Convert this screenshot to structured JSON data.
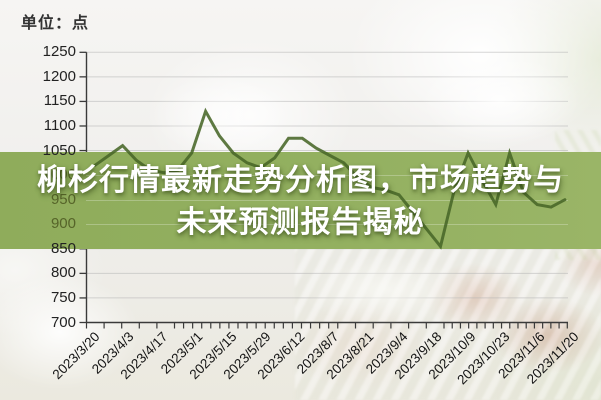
{
  "header": {
    "unit_label": "单位：点"
  },
  "overlay": {
    "line1": "柳杉行情最新走势分析图，市场趋势与",
    "line2": "未来预测报告揭秘"
  },
  "chart_data": {
    "type": "line",
    "unit": "点",
    "ylim": [
      700,
      1250
    ],
    "y_ticks": [
      1250,
      1200,
      1150,
      1100,
      1050,
      1000,
      950,
      900,
      850,
      800,
      750,
      700
    ],
    "x_labels": [
      "2023/3/20",
      "2023/4/3",
      "2023/4/17",
      "2023/5/1",
      "2023/5/15",
      "2023/5/29",
      "2023/6/12",
      "2023/8/7",
      "2023/8/21",
      "2023/9/4",
      "2023/9/18",
      "2023/10/9",
      "2023/10/23",
      "2023/11/6",
      "2023/11/20"
    ],
    "values": [
      1020,
      1040,
      1060,
      1030,
      1010,
      1005,
      1010,
      1045,
      1130,
      1080,
      1045,
      1025,
      1015,
      1035,
      1075,
      1075,
      1055,
      1040,
      1025,
      995,
      975,
      970,
      960,
      925,
      890,
      855,
      970,
      1045,
      990,
      940,
      1045,
      965,
      940,
      935,
      950
    ],
    "grid": true,
    "legend": "none",
    "colors": {
      "line": "#4f6e28",
      "band": "#93b060",
      "grid": "#b5b5b5",
      "axis": "#3a3a3a",
      "title_text": "#ffffff"
    }
  }
}
